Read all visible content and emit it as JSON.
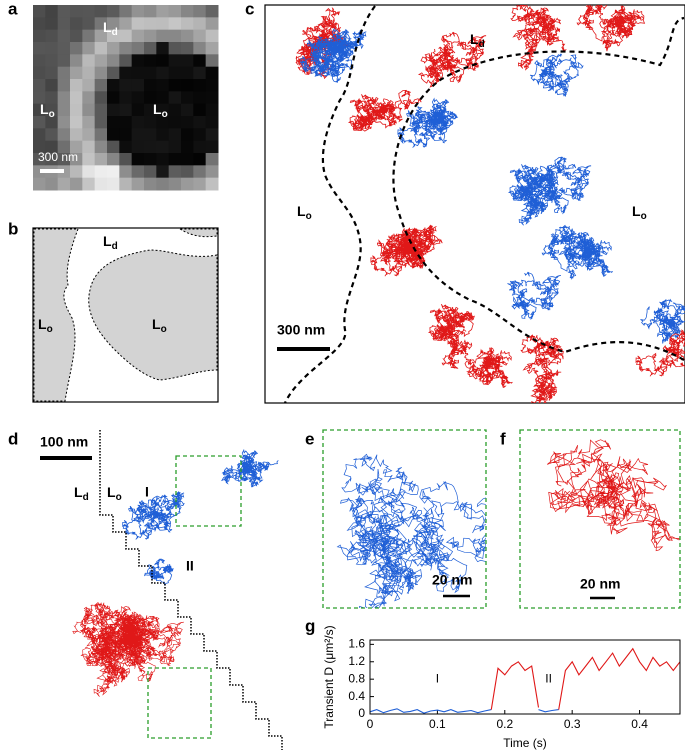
{
  "panels": {
    "a": {
      "label": "a",
      "regions": [
        {
          "text": "L",
          "sub": "d"
        },
        {
          "text": "L",
          "sub": "o"
        },
        {
          "text": "L",
          "sub": "o"
        }
      ],
      "scale_bar": "300 nm"
    },
    "b": {
      "label": "b",
      "regions": [
        {
          "text": "L",
          "sub": "d"
        },
        {
          "text": "L",
          "sub": "o"
        },
        {
          "text": "L",
          "sub": "o"
        }
      ]
    },
    "c": {
      "label": "c",
      "regions": [
        {
          "text": "L",
          "sub": "d"
        },
        {
          "text": "L",
          "sub": "o"
        },
        {
          "text": "L",
          "sub": "o"
        }
      ],
      "scale_bar": "300 nm"
    },
    "d": {
      "label": "d",
      "regions": [
        {
          "text": "L",
          "sub": "d"
        },
        {
          "text": "L",
          "sub": "o"
        }
      ],
      "scale_bar": "100 nm",
      "segments": [
        "I",
        "II"
      ]
    },
    "e": {
      "label": "e",
      "scale_bar": "20 nm"
    },
    "f": {
      "label": "f",
      "scale_bar": "20 nm"
    },
    "g": {
      "label": "g"
    }
  },
  "chart_data": {
    "type": "line",
    "x_label": "Time (s)",
    "y_label": "Transient D (μm²/s)",
    "x": [
      0,
      0.01,
      0.02,
      0.03,
      0.04,
      0.05,
      0.06,
      0.07,
      0.08,
      0.09,
      0.1,
      0.11,
      0.12,
      0.13,
      0.14,
      0.15,
      0.16,
      0.17,
      0.18,
      0.19,
      0.2,
      0.21,
      0.22,
      0.23,
      0.24,
      0.25,
      0.26,
      0.27,
      0.28,
      0.29,
      0.3,
      0.31,
      0.32,
      0.33,
      0.34,
      0.35,
      0.36,
      0.37,
      0.38,
      0.39,
      0.4,
      0.41,
      0.42,
      0.43,
      0.44,
      0.45,
      0.46
    ],
    "series": [
      {
        "color": "#1f5fd6",
        "values": [
          0.05,
          0.1,
          0.03,
          0.08,
          0.12,
          0.04,
          0.06,
          0.1,
          0.02,
          0.07,
          0.09,
          0.05,
          0.1,
          0.04,
          0.06,
          0.08,
          0.03,
          0.07,
          0.1,
          null,
          null,
          null,
          null,
          null,
          null,
          0.1,
          0.05,
          0.08,
          0.1,
          null,
          null,
          null,
          null,
          null,
          null,
          null,
          null,
          null,
          null,
          null,
          null,
          null,
          null,
          null,
          null,
          null,
          null
        ]
      },
      {
        "color": "#e01818",
        "values": [
          null,
          null,
          null,
          null,
          null,
          null,
          null,
          null,
          null,
          null,
          null,
          null,
          null,
          null,
          null,
          null,
          null,
          null,
          0.1,
          1.05,
          0.9,
          1.1,
          1.2,
          1.0,
          1.1,
          0.15,
          null,
          null,
          0.1,
          1.0,
          1.2,
          0.9,
          1.1,
          1.3,
          1.0,
          1.2,
          1.4,
          1.1,
          1.3,
          1.5,
          1.2,
          1.0,
          1.3,
          1.1,
          1.2,
          1.0,
          1.2
        ]
      }
    ],
    "xlim": [
      0,
      0.46
    ],
    "ylim": [
      0,
      1.7
    ],
    "xticks": [
      0,
      0.1,
      0.2,
      0.3,
      0.4
    ],
    "yticks": [
      0,
      0.4,
      0.8,
      1.2,
      1.6
    ],
    "annotations": [
      "I",
      "II"
    ]
  }
}
